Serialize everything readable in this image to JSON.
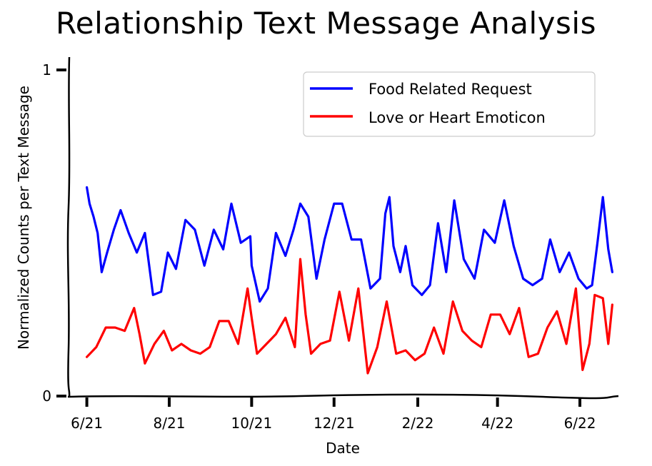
{
  "chart_data": {
    "type": "line",
    "title": "Relationship Text Message Analysis",
    "xlabel": "Date",
    "ylabel": "Normalized Counts per Text Message",
    "x_ticks": [
      {
        "label": "6/21",
        "value": "2021-06-01"
      },
      {
        "label": "8/21",
        "value": "2021-08-01"
      },
      {
        "label": "10/21",
        "value": "2021-10-01"
      },
      {
        "label": "12/21",
        "value": "2021-12-01"
      },
      {
        "label": "2/22",
        "value": "2022-02-01"
      },
      {
        "label": "4/22",
        "value": "2022-04-01"
      },
      {
        "label": "6/22",
        "value": "2022-06-01"
      }
    ],
    "y_ticks": [
      {
        "label": "0",
        "value": 0
      },
      {
        "label": "1",
        "value": 1
      }
    ],
    "xlim": [
      "2021-05-19",
      "2022-06-29"
    ],
    "ylim": [
      0,
      1
    ],
    "grid": false,
    "legend_position": "top-right",
    "series": [
      {
        "name": "Food Related Request",
        "color": "#0000ff",
        "points": [
          [
            "2021-06-01",
            0.64
          ],
          [
            "2021-06-03",
            0.59
          ],
          [
            "2021-06-06",
            0.55
          ],
          [
            "2021-06-09",
            0.5
          ],
          [
            "2021-06-12",
            0.38
          ],
          [
            "2021-06-16",
            0.44
          ],
          [
            "2021-06-21",
            0.51
          ],
          [
            "2021-06-26",
            0.57
          ],
          [
            "2021-07-02",
            0.5
          ],
          [
            "2021-07-08",
            0.44
          ],
          [
            "2021-07-14",
            0.5
          ],
          [
            "2021-07-20",
            0.31
          ],
          [
            "2021-07-26",
            0.32
          ],
          [
            "2021-07-31",
            0.44
          ],
          [
            "2021-08-06",
            0.39
          ],
          [
            "2021-08-13",
            0.54
          ],
          [
            "2021-08-20",
            0.51
          ],
          [
            "2021-08-27",
            0.4
          ],
          [
            "2021-09-03",
            0.51
          ],
          [
            "2021-09-10",
            0.45
          ],
          [
            "2021-09-16",
            0.59
          ],
          [
            "2021-09-23",
            0.47
          ],
          [
            "2021-09-30",
            0.49
          ],
          [
            "2021-10-01",
            0.4
          ],
          [
            "2021-10-07",
            0.29
          ],
          [
            "2021-10-13",
            0.33
          ],
          [
            "2021-10-19",
            0.5
          ],
          [
            "2021-10-26",
            0.43
          ],
          [
            "2021-11-01",
            0.51
          ],
          [
            "2021-11-06",
            0.59
          ],
          [
            "2021-11-12",
            0.55
          ],
          [
            "2021-11-18",
            0.36
          ],
          [
            "2021-11-24",
            0.48
          ],
          [
            "2021-12-01",
            0.59
          ],
          [
            "2021-12-07",
            0.59
          ],
          [
            "2021-12-14",
            0.48
          ],
          [
            "2021-12-21",
            0.48
          ],
          [
            "2021-12-28",
            0.33
          ],
          [
            "2022-01-04",
            0.36
          ],
          [
            "2022-01-08",
            0.56
          ],
          [
            "2022-01-11",
            0.61
          ],
          [
            "2022-01-14",
            0.46
          ],
          [
            "2022-01-19",
            0.38
          ],
          [
            "2022-01-23",
            0.46
          ],
          [
            "2022-01-28",
            0.34
          ],
          [
            "2022-02-04",
            0.31
          ],
          [
            "2022-02-10",
            0.34
          ],
          [
            "2022-02-16",
            0.53
          ],
          [
            "2022-02-22",
            0.38
          ],
          [
            "2022-02-28",
            0.6
          ],
          [
            "2022-03-07",
            0.42
          ],
          [
            "2022-03-15",
            0.36
          ],
          [
            "2022-03-22",
            0.51
          ],
          [
            "2022-03-30",
            0.47
          ],
          [
            "2022-04-06",
            0.6
          ],
          [
            "2022-04-13",
            0.46
          ],
          [
            "2022-04-20",
            0.36
          ],
          [
            "2022-04-27",
            0.34
          ],
          [
            "2022-05-04",
            0.36
          ],
          [
            "2022-05-10",
            0.48
          ],
          [
            "2022-05-17",
            0.38
          ],
          [
            "2022-05-24",
            0.44
          ],
          [
            "2022-05-31",
            0.36
          ],
          [
            "2022-06-06",
            0.33
          ],
          [
            "2022-06-10",
            0.34
          ],
          [
            "2022-06-14",
            0.47
          ],
          [
            "2022-06-18",
            0.61
          ],
          [
            "2022-06-22",
            0.45
          ],
          [
            "2022-06-25",
            0.38
          ]
        ]
      },
      {
        "name": "Love or Heart Emoticon",
        "color": "#ff0000",
        "points": [
          [
            "2021-06-01",
            0.12
          ],
          [
            "2021-06-08",
            0.15
          ],
          [
            "2021-06-15",
            0.21
          ],
          [
            "2021-06-22",
            0.21
          ],
          [
            "2021-06-29",
            0.2
          ],
          [
            "2021-07-06",
            0.27
          ],
          [
            "2021-07-10",
            0.19
          ],
          [
            "2021-07-14",
            0.1
          ],
          [
            "2021-07-21",
            0.16
          ],
          [
            "2021-07-28",
            0.2
          ],
          [
            "2021-08-03",
            0.14
          ],
          [
            "2021-08-10",
            0.16
          ],
          [
            "2021-08-17",
            0.14
          ],
          [
            "2021-08-24",
            0.13
          ],
          [
            "2021-08-31",
            0.15
          ],
          [
            "2021-09-07",
            0.23
          ],
          [
            "2021-09-14",
            0.23
          ],
          [
            "2021-09-21",
            0.16
          ],
          [
            "2021-09-28",
            0.33
          ],
          [
            "2021-10-01",
            0.24
          ],
          [
            "2021-10-05",
            0.13
          ],
          [
            "2021-10-12",
            0.16
          ],
          [
            "2021-10-19",
            0.19
          ],
          [
            "2021-10-26",
            0.24
          ],
          [
            "2021-11-02",
            0.15
          ],
          [
            "2021-11-06",
            0.42
          ],
          [
            "2021-11-10",
            0.25
          ],
          [
            "2021-11-14",
            0.13
          ],
          [
            "2021-11-21",
            0.16
          ],
          [
            "2021-11-28",
            0.17
          ],
          [
            "2021-12-05",
            0.32
          ],
          [
            "2021-12-12",
            0.17
          ],
          [
            "2021-12-19",
            0.33
          ],
          [
            "2021-12-26",
            0.07
          ],
          [
            "2022-01-02",
            0.15
          ],
          [
            "2022-01-09",
            0.29
          ],
          [
            "2022-01-16",
            0.13
          ],
          [
            "2022-01-23",
            0.14
          ],
          [
            "2022-01-30",
            0.11
          ],
          [
            "2022-02-06",
            0.13
          ],
          [
            "2022-02-13",
            0.21
          ],
          [
            "2022-02-20",
            0.13
          ],
          [
            "2022-02-27",
            0.29
          ],
          [
            "2022-03-06",
            0.2
          ],
          [
            "2022-03-13",
            0.17
          ],
          [
            "2022-03-20",
            0.15
          ],
          [
            "2022-03-27",
            0.25
          ],
          [
            "2022-04-03",
            0.25
          ],
          [
            "2022-04-10",
            0.19
          ],
          [
            "2022-04-17",
            0.27
          ],
          [
            "2022-04-24",
            0.12
          ],
          [
            "2022-05-01",
            0.13
          ],
          [
            "2022-05-08",
            0.21
          ],
          [
            "2022-05-15",
            0.26
          ],
          [
            "2022-05-22",
            0.16
          ],
          [
            "2022-05-29",
            0.33
          ],
          [
            "2022-06-03",
            0.08
          ],
          [
            "2022-06-08",
            0.16
          ],
          [
            "2022-06-12",
            0.31
          ],
          [
            "2022-06-18",
            0.3
          ],
          [
            "2022-06-22",
            0.16
          ],
          [
            "2022-06-25",
            0.28
          ]
        ]
      }
    ]
  }
}
